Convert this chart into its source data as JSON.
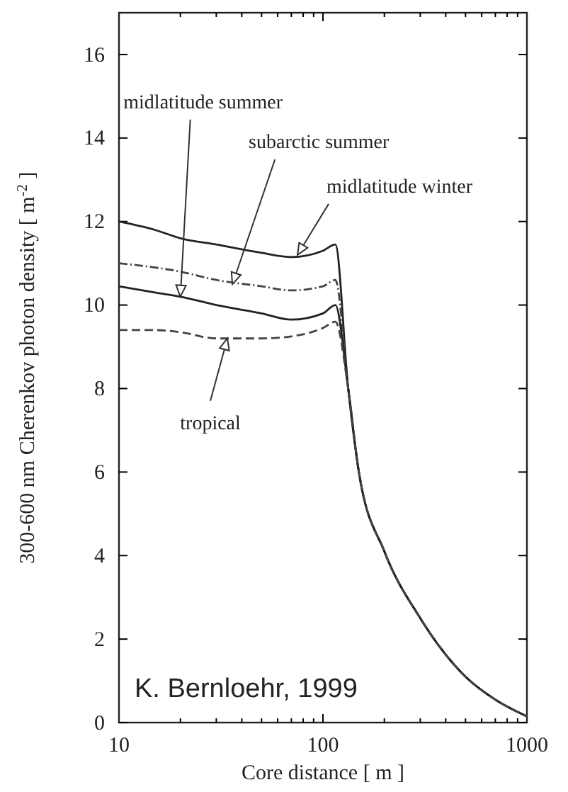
{
  "chart_data": {
    "type": "line",
    "xlabel": "Core distance  [ m ]",
    "ylabel": "300-600 nm Cherenkov photon density  [ m$^{-2}$ ]",
    "log": "x",
    "xlim": [
      10,
      1000
    ],
    "ylim": [
      0,
      17
    ],
    "xticks": [
      10,
      {
        "value": 20,
        "label": null
      },
      {
        "value": 30,
        "label": null
      },
      {
        "value": 40,
        "label": null
      },
      {
        "value": 50,
        "label": null
      },
      {
        "value": 60,
        "label": null
      },
      {
        "value": 70,
        "label": null
      },
      {
        "value": 80,
        "label": null
      },
      {
        "value": 90,
        "label": null
      },
      100,
      {
        "value": 200,
        "label": null
      },
      {
        "value": 300,
        "label": null
      },
      {
        "value": 400,
        "label": null
      },
      {
        "value": 500,
        "label": null
      },
      {
        "value": 600,
        "label": null
      },
      {
        "value": 700,
        "label": null
      },
      {
        "value": 800,
        "label": null
      },
      {
        "value": 900,
        "label": null
      },
      1000
    ],
    "yticks": [
      0,
      2,
      4,
      6,
      8,
      10,
      12,
      14,
      16
    ],
    "grid": false,
    "marker": "none",
    "x": [
      10,
      15,
      20,
      30,
      50,
      70,
      100,
      115,
      133,
      150,
      200,
      300,
      500,
      700,
      1000
    ],
    "series": [
      {
        "color": "#222222",
        "line_style": "solid",
        "values": [
          12.0,
          11.8,
          11.6,
          11.45,
          11.25,
          11.15,
          11.3,
          11.45,
          8.0,
          6.0,
          4.1,
          2.5,
          1.1,
          0.55,
          0.15
        ]
      },
      {
        "color": "#444444",
        "line_style": "dotted",
        "values": [
          11.0,
          10.9,
          10.8,
          10.6,
          10.45,
          10.35,
          10.45,
          10.6,
          8.0,
          6.0,
          4.1,
          2.5,
          1.1,
          0.55,
          0.15
        ]
      },
      {
        "color": "#222222",
        "line_style": "solid",
        "values": [
          10.45,
          10.3,
          10.2,
          10.0,
          9.8,
          9.65,
          9.8,
          10.0,
          8.0,
          6.0,
          4.1,
          2.5,
          1.1,
          0.55,
          0.15
        ]
      },
      {
        "color": "#444444",
        "line_style": "dashed",
        "values": [
          9.4,
          9.4,
          9.35,
          9.2,
          9.2,
          9.25,
          9.45,
          9.6,
          8.0,
          6.0,
          4.1,
          2.5,
          1.1,
          0.55,
          0.15
        ]
      }
    ],
    "annotations": [
      {
        "text": "midlatitude summer",
        "x": 20,
        "y": 10.2
      },
      {
        "text": "subarctic summer",
        "x": 36,
        "y": 10.5
      },
      {
        "text": "midlatitude winter",
        "x": 75,
        "y": 11.2
      },
      {
        "text": "tropical",
        "x": 34,
        "y": 9.2
      },
      "K. Bernloehr, 1999"
    ]
  }
}
